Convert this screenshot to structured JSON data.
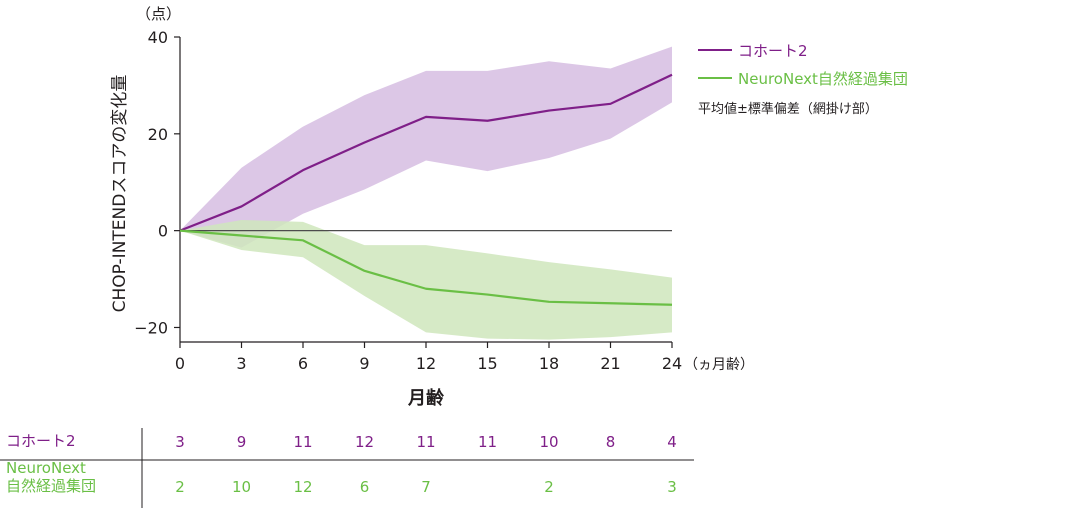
{
  "chart_data": {
    "type": "line",
    "unit_label": "（点）",
    "ylabel": "CHOP-INTENDスコアの変化量",
    "xlabel": "月齢",
    "x_unit_label": "（ヵ月齢）",
    "x": [
      0,
      3,
      6,
      9,
      12,
      15,
      18,
      21,
      24
    ],
    "ylim": [
      -23,
      40
    ],
    "yticks": [
      40,
      20,
      0,
      -20
    ],
    "ytick_labels": [
      "40",
      "20",
      "0",
      "−20"
    ],
    "xtick_labels": [
      "0",
      "3",
      "6",
      "9",
      "12",
      "15",
      "18",
      "21",
      "24"
    ],
    "series": [
      {
        "name": "コホート2",
        "color": "#7f1f88",
        "band_color": "#c9a9d8",
        "values": [
          0,
          5,
          12.5,
          18.2,
          23.5,
          22.7,
          24.8,
          26.2,
          32.2
        ],
        "upper": [
          0,
          13,
          21.5,
          28,
          33,
          33,
          35,
          33.5,
          38
        ],
        "lower": [
          0,
          -3.5,
          3.5,
          8.5,
          14.5,
          12.3,
          15,
          19,
          26.5
        ]
      },
      {
        "name": "NeuroNext自然経過集団",
        "color": "#6abf45",
        "band_color": "#cfe6bc",
        "values": [
          0,
          -1,
          -2,
          -8.3,
          -12,
          -13.2,
          -14.7,
          -15,
          -15.3
        ],
        "upper": [
          0,
          2.2,
          1.8,
          -3,
          -3,
          -4.7,
          -6.5,
          -8,
          -9.7
        ],
        "lower": [
          0,
          -4,
          -5.5,
          -13.5,
          -21,
          -22.3,
          -22.5,
          -22,
          -21
        ]
      }
    ],
    "legend_note": "平均値±標準偏差（網掛け部）",
    "legend_position": "top-right",
    "n_table": {
      "rows": [
        {
          "label_lines": [
            "コホート2"
          ],
          "color": "#7f1f88",
          "values": [
            "3",
            "9",
            "11",
            "12",
            "11",
            "11",
            "10",
            "8",
            "4"
          ]
        },
        {
          "label_lines": [
            "NeuroNext",
            "自然経過集団"
          ],
          "color": "#6abf45",
          "values": [
            "2",
            "10",
            "12",
            "6",
            "7",
            "",
            "2",
            "",
            "3"
          ]
        }
      ]
    }
  }
}
